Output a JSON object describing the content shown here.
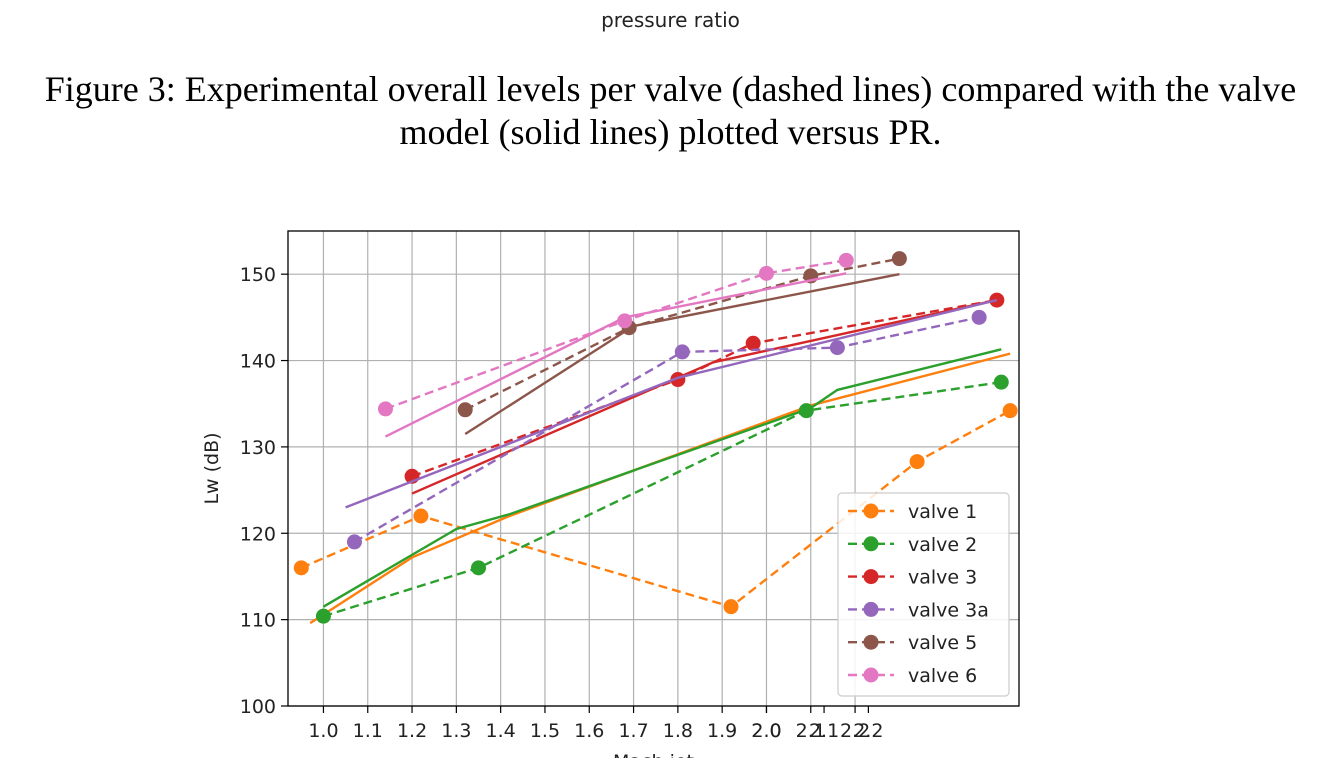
{
  "top_label": "pressure ratio",
  "caption": {
    "line1": "Figure 3: Experimental overall levels per valve (dashed lines) compared with the valve",
    "line2": "model (solid lines) plotted versus PR."
  },
  "chart_data": {
    "type": "line",
    "title": "",
    "xlabel": "Mach jet",
    "ylabel": "Lw (dB)",
    "xlim": [
      0.92,
      2.57
    ],
    "ylim": [
      100,
      155
    ],
    "y_ticks": [
      100,
      110,
      120,
      130,
      140,
      150
    ],
    "x_ticks": [
      {
        "v": 1.0,
        "label": "1.0"
      },
      {
        "v": 1.1,
        "label": "1.1"
      },
      {
        "v": 1.2,
        "label": "1.2"
      },
      {
        "v": 1.3,
        "label": "1.3"
      },
      {
        "v": 1.4,
        "label": "1.4"
      },
      {
        "v": 1.5,
        "label": "1.5"
      },
      {
        "v": 1.6,
        "label": "1.6"
      },
      {
        "v": 1.7,
        "label": "1.7"
      },
      {
        "v": 1.8,
        "label": "1.8"
      },
      {
        "v": 1.9,
        "label": "1.9"
      },
      {
        "v": 2.0,
        "label": "2.0"
      },
      {
        "v": 2.1,
        "label": "2.1"
      },
      {
        "v": 2.2,
        "label": "2.2"
      }
    ],
    "x_ticks_overlay": [
      {
        "v": 2.0,
        "label": "2.0"
      },
      {
        "v": 2.13,
        "label": "2.1"
      },
      {
        "v": 2.23,
        "label": "2.2"
      }
    ],
    "grid": true,
    "legend_position": "lower-right",
    "colors": {
      "valve 1": "#ff7f0e",
      "valve 2": "#2ca02c",
      "valve 3": "#d62728",
      "valve 3a": "#9467bd",
      "valve 5": "#8c564b",
      "valve 6": "#e377c2"
    },
    "series": [
      {
        "name": "valve 1",
        "experimental": [
          [
            0.95,
            116
          ],
          [
            1.22,
            122
          ],
          [
            1.92,
            111.5
          ],
          [
            2.34,
            128.3
          ],
          [
            2.55,
            134.2
          ]
        ],
        "model": [
          [
            0.97,
            109.6
          ],
          [
            1.2,
            117.2
          ],
          [
            1.42,
            122
          ],
          [
            2.1,
            134.8
          ],
          [
            2.55,
            140.8
          ]
        ]
      },
      {
        "name": "valve 2",
        "experimental": [
          [
            1.0,
            110.4
          ],
          [
            1.35,
            116
          ],
          [
            2.09,
            134.2
          ],
          [
            2.53,
            137.5
          ]
        ],
        "model": [
          [
            1.0,
            111.5
          ],
          [
            1.3,
            120.5
          ],
          [
            1.42,
            122.2
          ],
          [
            2.1,
            134.5
          ],
          [
            2.16,
            136.6
          ],
          [
            2.53,
            141.3
          ]
        ]
      },
      {
        "name": "valve 3",
        "experimental": [
          [
            1.2,
            126.6
          ],
          [
            1.8,
            137.8
          ],
          [
            1.97,
            142
          ],
          [
            2.52,
            147
          ]
        ],
        "model": [
          [
            1.2,
            124.6
          ],
          [
            1.88,
            139.8
          ],
          [
            2.52,
            147
          ]
        ]
      },
      {
        "name": "valve 3a",
        "experimental": [
          [
            1.07,
            119
          ],
          [
            1.81,
            141
          ],
          [
            2.16,
            141.5
          ],
          [
            2.48,
            145
          ]
        ],
        "model": [
          [
            1.05,
            123
          ],
          [
            1.8,
            138
          ],
          [
            2.52,
            147
          ]
        ]
      },
      {
        "name": "valve 5",
        "experimental": [
          [
            1.32,
            134.3
          ],
          [
            1.69,
            143.8
          ],
          [
            2.1,
            149.8
          ],
          [
            2.3,
            151.8
          ]
        ],
        "model": [
          [
            1.32,
            131.5
          ],
          [
            1.7,
            144
          ],
          [
            2.3,
            150
          ]
        ]
      },
      {
        "name": "valve 6",
        "experimental": [
          [
            1.14,
            134.4
          ],
          [
            1.68,
            144.6
          ],
          [
            2.0,
            150.1
          ],
          [
            2.18,
            151.6
          ]
        ],
        "model": [
          [
            1.14,
            131.2
          ],
          [
            1.68,
            145
          ],
          [
            2.18,
            150.1
          ]
        ]
      }
    ]
  }
}
